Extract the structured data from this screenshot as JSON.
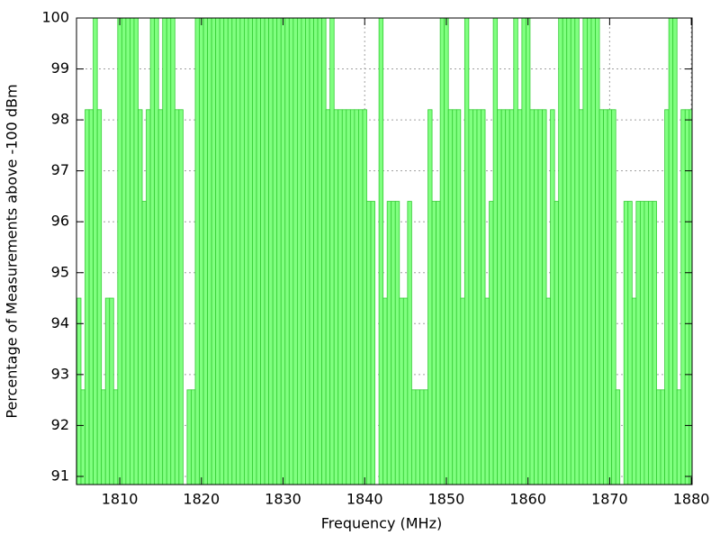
{
  "chart_data": {
    "type": "bar",
    "xlabel": "Frequency (MHz)",
    "ylabel": "Percentage of Measurements above -100 dBm",
    "color": "#80ff80",
    "edge_color": "#33cc33",
    "bar_width": 0.5,
    "xlim": [
      1804.7,
      1880.1
    ],
    "ylim": [
      90.84,
      100
    ],
    "xticks": [
      1810,
      1820,
      1830,
      1840,
      1850,
      1860,
      1870,
      1880
    ],
    "yticks": [
      91,
      92,
      93,
      94,
      95,
      96,
      97,
      98,
      99,
      100
    ],
    "grid": true,
    "x": [
      1805,
      1805.5,
      1806,
      1806.5,
      1807,
      1807.5,
      1808,
      1808.5,
      1809,
      1809.5,
      1810,
      1810.5,
      1811,
      1811.5,
      1812,
      1812.5,
      1813,
      1813.5,
      1814,
      1814.5,
      1815,
      1815.5,
      1816,
      1816.5,
      1817,
      1817.5,
      1818,
      1818.5,
      1819,
      1819.5,
      1820,
      1820.5,
      1821,
      1821.5,
      1822,
      1822.5,
      1823,
      1823.5,
      1824,
      1824.5,
      1825,
      1825.5,
      1826,
      1826.5,
      1827,
      1827.5,
      1828,
      1828.5,
      1829,
      1829.5,
      1830,
      1830.5,
      1831,
      1831.5,
      1832,
      1832.5,
      1833,
      1833.5,
      1834,
      1834.5,
      1835,
      1835.5,
      1836,
      1836.5,
      1837,
      1837.5,
      1838,
      1838.5,
      1839,
      1839.5,
      1840,
      1840.5,
      1841,
      1841.5,
      1842,
      1842.5,
      1843,
      1843.5,
      1844,
      1844.5,
      1845,
      1845.5,
      1846,
      1846.5,
      1847,
      1847.5,
      1848,
      1848.5,
      1849,
      1849.5,
      1850,
      1850.5,
      1851,
      1851.5,
      1852,
      1852.5,
      1853,
      1853.5,
      1854,
      1854.5,
      1855,
      1855.5,
      1856,
      1856.5,
      1857,
      1857.5,
      1858,
      1858.5,
      1859,
      1859.5,
      1860,
      1860.5,
      1861,
      1861.5,
      1862,
      1862.5,
      1863,
      1863.5,
      1864,
      1864.5,
      1865,
      1865.5,
      1866,
      1866.5,
      1867,
      1867.5,
      1868,
      1868.5,
      1869,
      1869.5,
      1870,
      1870.5,
      1871,
      1871.5,
      1872,
      1872.5,
      1873,
      1873.5,
      1874,
      1874.5,
      1875,
      1875.5,
      1876,
      1876.5,
      1877,
      1877.5,
      1878,
      1878.5,
      1879,
      1879.5,
      1880
    ],
    "values": [
      94.5,
      92.7,
      98.2,
      98.2,
      100,
      98.2,
      92.7,
      94.5,
      94.5,
      92.7,
      100,
      100,
      100,
      100,
      100,
      98.2,
      96.4,
      98.2,
      100,
      100,
      98.2,
      100,
      100,
      100,
      98.2,
      98.2,
      90.5,
      92.7,
      92.7,
      100,
      100,
      100,
      100,
      100,
      100,
      100,
      100,
      100,
      100,
      100,
      100,
      100,
      100,
      100,
      100,
      100,
      100,
      100,
      100,
      100,
      100,
      100,
      100,
      100,
      100,
      100,
      100,
      100,
      100,
      100,
      100,
      98.2,
      100,
      98.2,
      98.2,
      98.2,
      98.2,
      98.2,
      98.2,
      98.2,
      98.2,
      96.4,
      96.4,
      90.5,
      100,
      94.5,
      96.4,
      96.4,
      96.4,
      94.5,
      94.5,
      96.4,
      92.7,
      92.7,
      92.7,
      92.7,
      98.2,
      96.4,
      96.4,
      100,
      100,
      98.2,
      98.2,
      98.2,
      94.5,
      100,
      98.2,
      98.2,
      98.2,
      98.2,
      94.5,
      96.4,
      100,
      98.2,
      98.2,
      98.2,
      98.2,
      100,
      98.2,
      100,
      100,
      98.2,
      98.2,
      98.2,
      98.2,
      94.5,
      98.2,
      96.4,
      100,
      100,
      100,
      100,
      100,
      98.2,
      100,
      100,
      100,
      100,
      98.2,
      98.2,
      98.2,
      98.2,
      92.7,
      90.5,
      96.4,
      96.4,
      94.5,
      96.4,
      96.4,
      96.4,
      96.4,
      96.4,
      92.7,
      92.7,
      98.2,
      100,
      100,
      92.7,
      98.2,
      98.2,
      98.2
    ]
  }
}
